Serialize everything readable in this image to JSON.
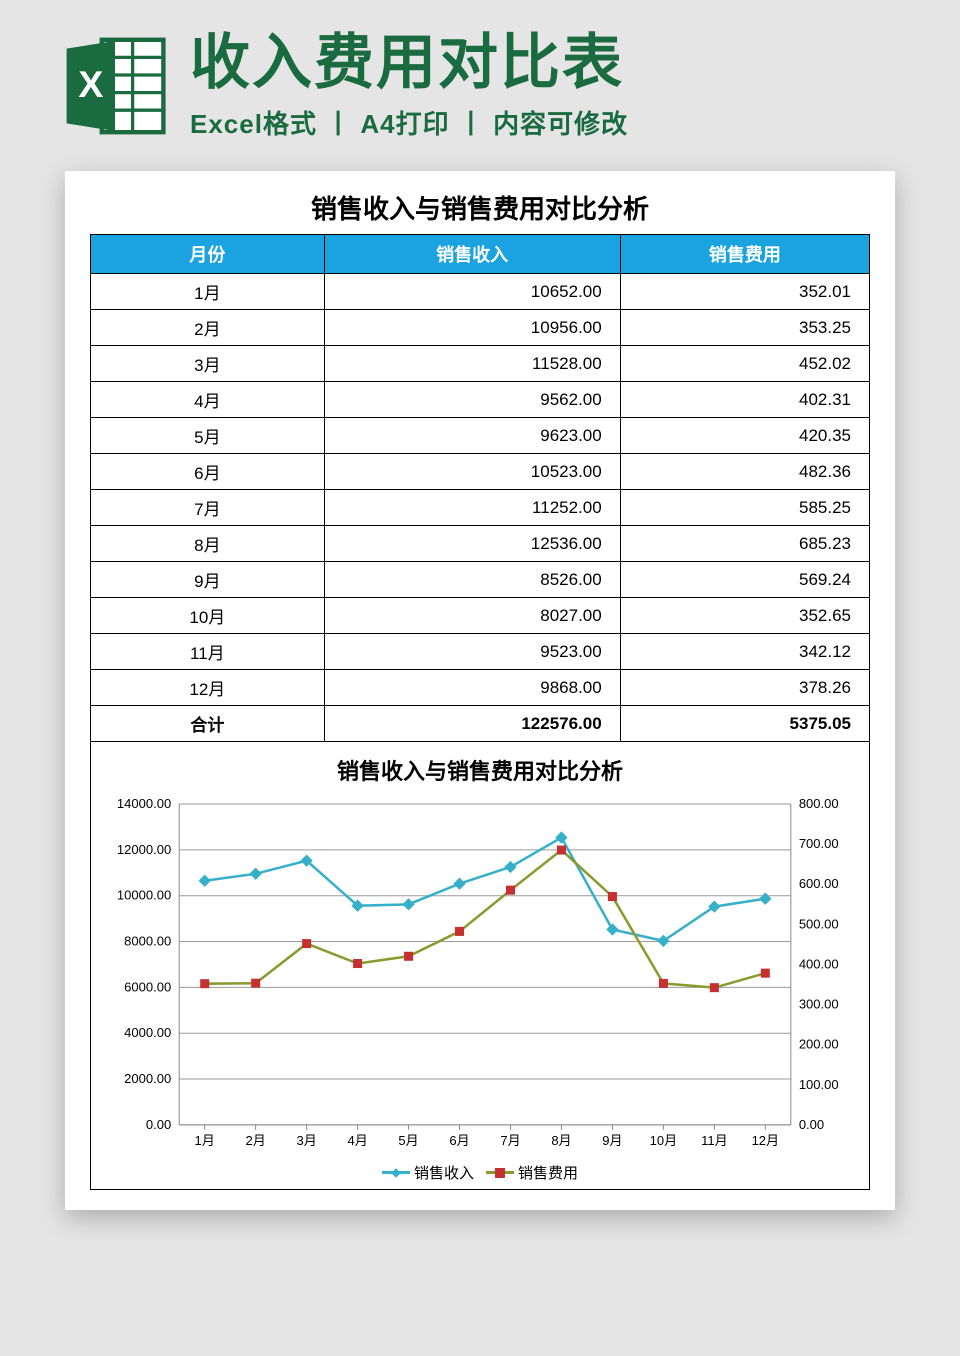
{
  "header": {
    "title": "收入费用对比表",
    "subtitle": "Excel格式 丨 A4打印 丨 内容可修改",
    "title_color": "#1a6b3f",
    "excel_icon_color": "#1a6b3f"
  },
  "sheet": {
    "title": "销售收入与销售费用对比分析",
    "background_color": "#ffffff"
  },
  "table": {
    "header_bg": "#1aa3e0",
    "header_fg": "#ffffff",
    "border_color": "#000000",
    "columns": [
      "月份",
      "销售收入",
      "销售费用"
    ],
    "rows": [
      [
        "1月",
        "10652.00",
        "352.01"
      ],
      [
        "2月",
        "10956.00",
        "353.25"
      ],
      [
        "3月",
        "11528.00",
        "452.02"
      ],
      [
        "4月",
        "9562.00",
        "402.31"
      ],
      [
        "5月",
        "9623.00",
        "420.35"
      ],
      [
        "6月",
        "10523.00",
        "482.36"
      ],
      [
        "7月",
        "11252.00",
        "585.25"
      ],
      [
        "8月",
        "12536.00",
        "685.23"
      ],
      [
        "9月",
        "8526.00",
        "569.24"
      ],
      [
        "10月",
        "8027.00",
        "352.65"
      ],
      [
        "11月",
        "9523.00",
        "342.12"
      ],
      [
        "12月",
        "9868.00",
        "378.26"
      ]
    ],
    "total_row": [
      "合计",
      "122576.00",
      "5375.05"
    ]
  },
  "chart": {
    "type": "line_dual_axis",
    "title": "销售收入与销售费用对比分析",
    "title_fontsize": 22,
    "categories": [
      "1月",
      "2月",
      "3月",
      "4月",
      "5月",
      "6月",
      "7月",
      "8月",
      "9月",
      "10月",
      "11月",
      "12月"
    ],
    "series": [
      {
        "name": "销售收入",
        "axis": "left",
        "values": [
          10652,
          10956,
          11528,
          9562,
          9623,
          10523,
          11252,
          12536,
          8526,
          8027,
          9523,
          9868
        ],
        "line_color": "#36b0c9",
        "marker": "diamond",
        "marker_color": "#36b0c9",
        "marker_size": 8,
        "line_width": 2.5
      },
      {
        "name": "销售费用",
        "axis": "right",
        "values": [
          352.01,
          353.25,
          452.02,
          402.31,
          420.35,
          482.36,
          585.25,
          685.23,
          569.24,
          352.65,
          342.12,
          378.26
        ],
        "line_color": "#8a9a2e",
        "marker": "square",
        "marker_color": "#c73030",
        "marker_size": 9,
        "line_width": 2.5
      }
    ],
    "left_axis": {
      "min": 0,
      "max": 14000,
      "step": 2000,
      "decimals": 2
    },
    "right_axis": {
      "min": 0,
      "max": 800,
      "step": 100,
      "decimals": 2
    },
    "grid_color": "#9a9a9a",
    "axis_label_fontsize": 13,
    "tick_label_color": "#000000",
    "plot_border_color": "#888888",
    "background_color": "#ffffff",
    "legend_position": "bottom"
  }
}
